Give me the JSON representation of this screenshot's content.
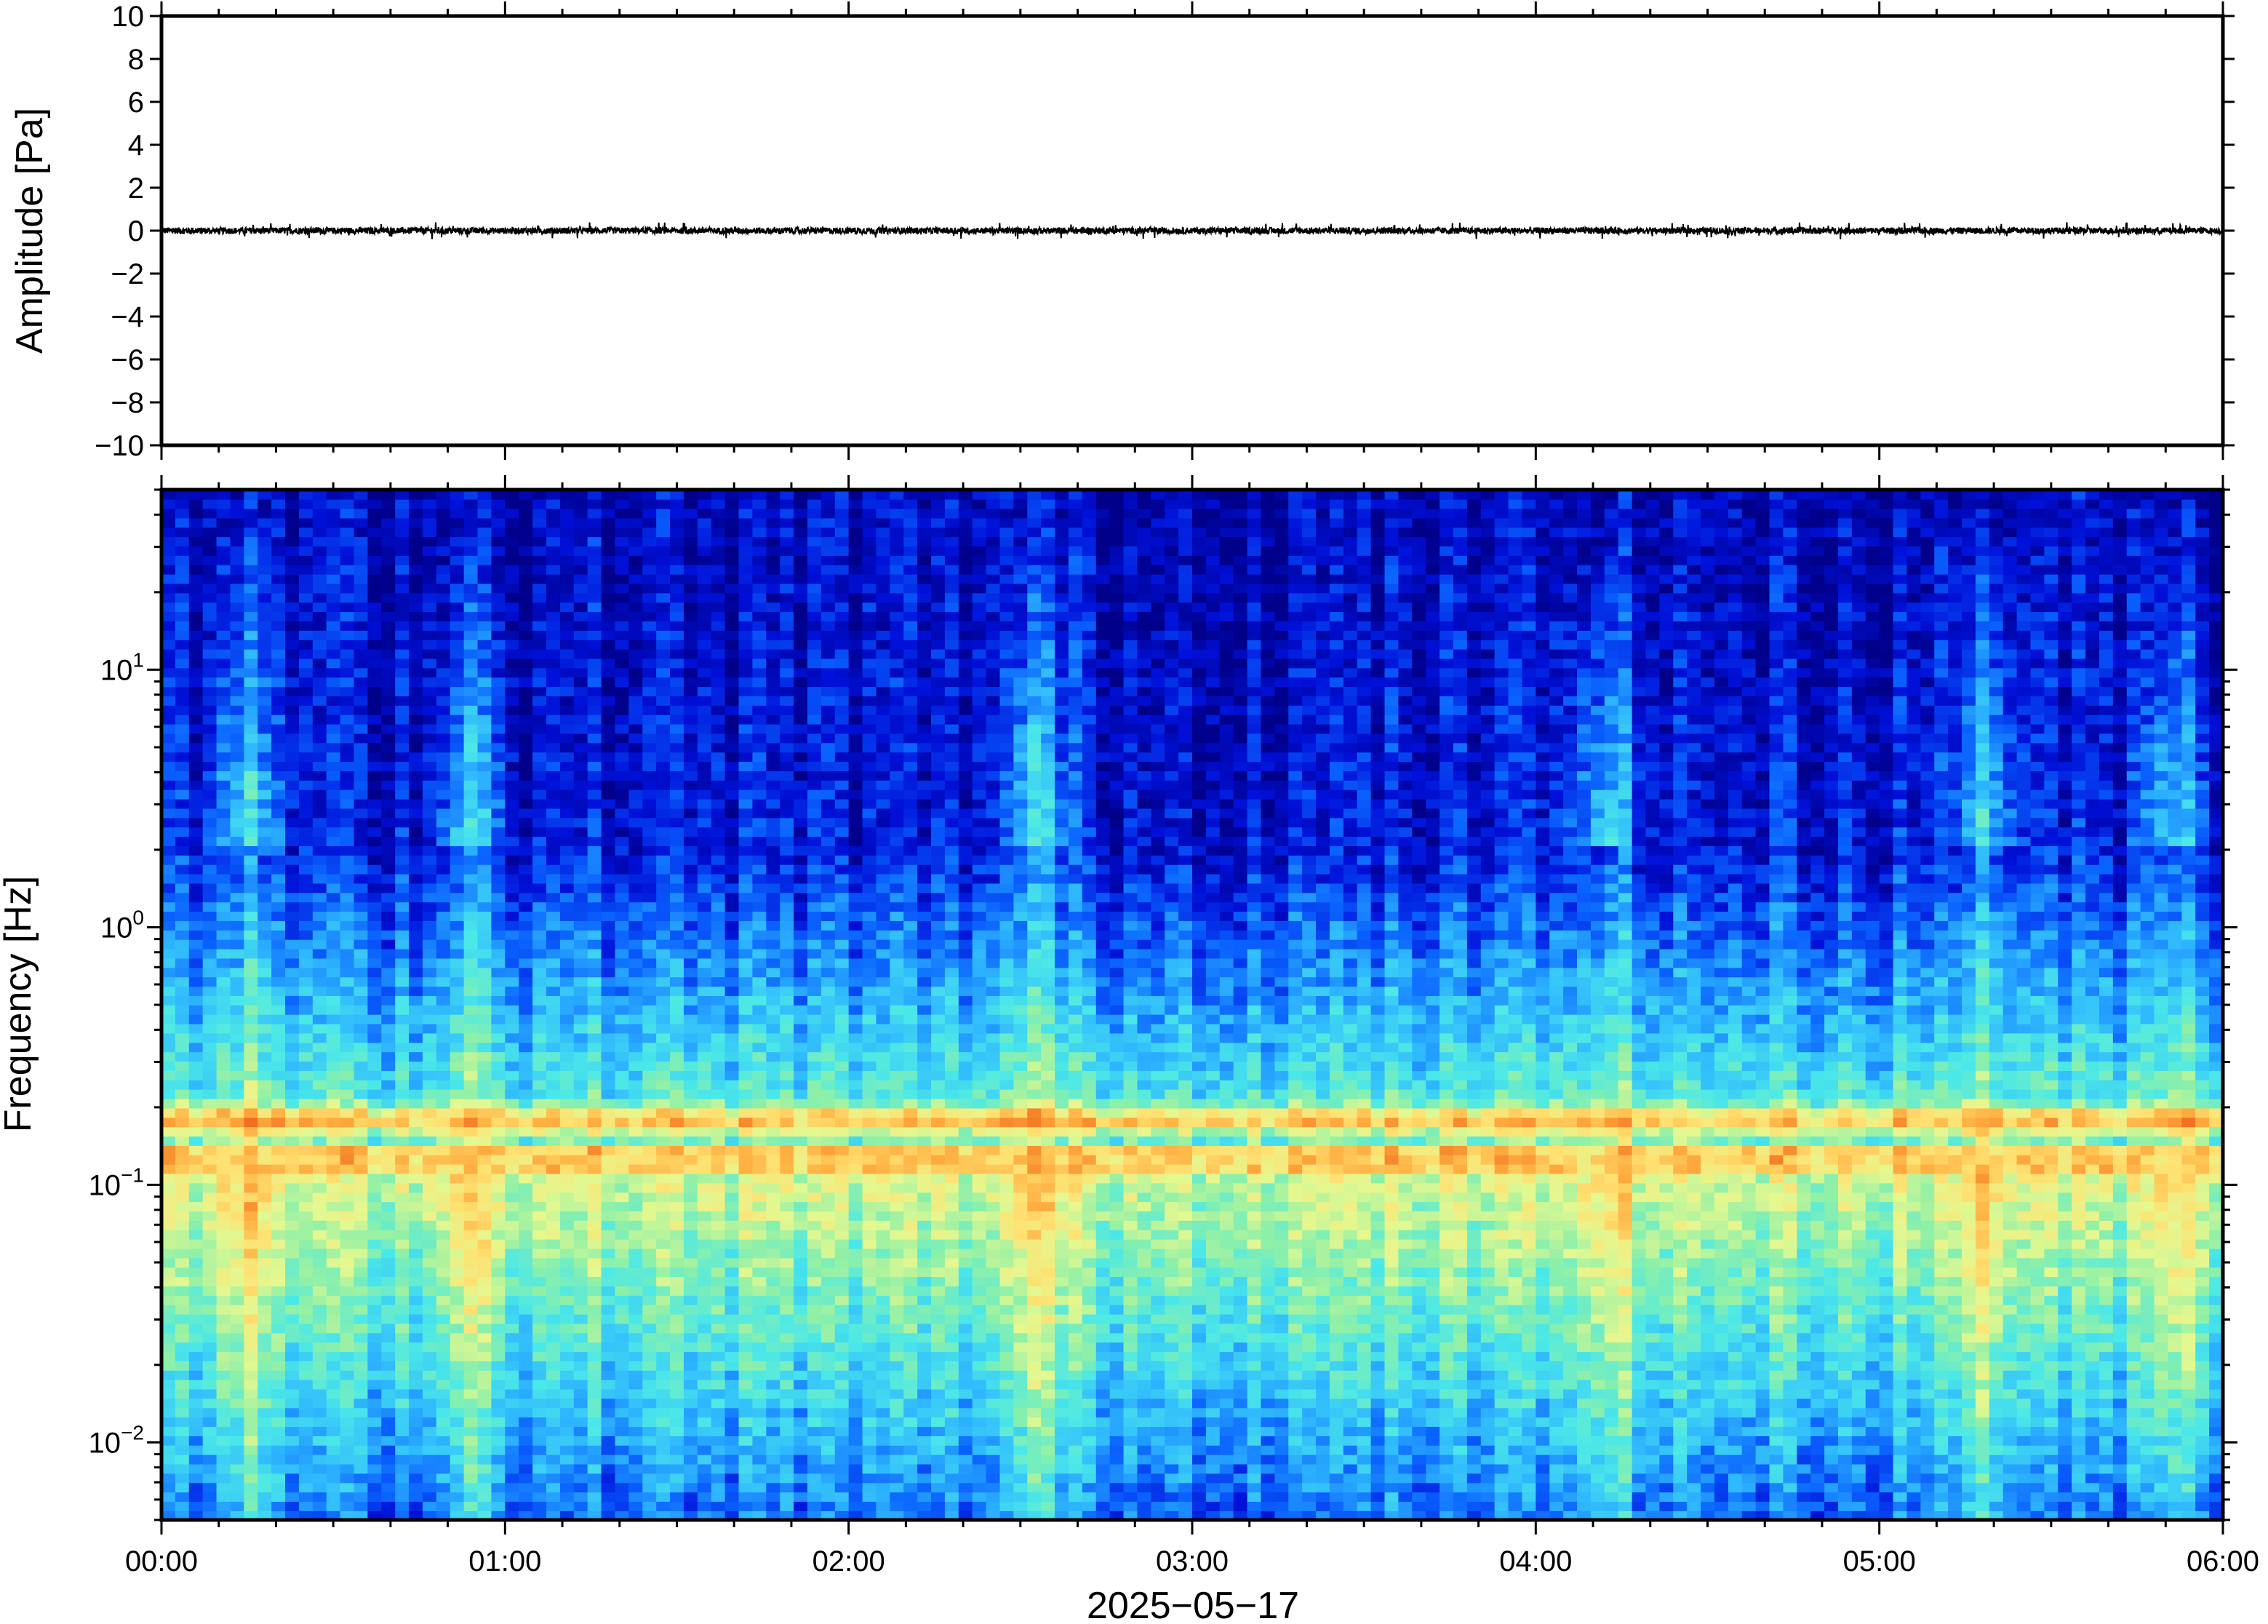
{
  "colors": {
    "trace": "#000000",
    "colormap": [
      "#00008a",
      "#0010d8",
      "#0a62ff",
      "#2fb8ff",
      "#4be8e8",
      "#8ef0a8",
      "#e4f890",
      "#ffe070",
      "#ffae40",
      "#f07020"
    ]
  },
  "chart_data": [
    {
      "type": "line",
      "panel": "amplitude",
      "ylabel": "Amplitude [Pa]",
      "ylim": [
        -10,
        10
      ],
      "yticks": [
        10,
        8,
        6,
        4,
        2,
        0,
        -2,
        -4,
        -6,
        -8,
        -10
      ],
      "ytick_labels": [
        "10",
        "8",
        "6",
        "4",
        "2",
        "0",
        "−2",
        "−4",
        "−6",
        "−8",
        "−10"
      ],
      "xlim_hours": [
        0,
        6
      ],
      "trace": {
        "baseline": 0,
        "peak_to_peak_approx": 0.5
      }
    },
    {
      "type": "heatmap",
      "panel": "spectrogram",
      "ylabel": "Frequency [Hz]",
      "yscale": "log",
      "ylim": [
        0.005,
        50
      ],
      "yticks": [
        10,
        1,
        0.1,
        0.01
      ],
      "ytick_labels": [
        {
          "base": "10",
          "exp": "1"
        },
        {
          "base": "10",
          "exp": "0"
        },
        {
          "base": "10",
          "exp": "−1"
        },
        {
          "base": "10",
          "exp": "−2"
        }
      ],
      "xlim_hours": [
        0,
        6
      ],
      "xticks": [
        "00:00",
        "01:00",
        "02:00",
        "03:00",
        "04:00",
        "05:00",
        "06:00"
      ],
      "xlabel": "2025−05−17",
      "features": {
        "microseism_peak_hz": 0.18,
        "high_energy_bursts_hours": [
          0.25,
          0.9,
          2.55,
          4.2,
          5.3,
          5.85
        ]
      }
    }
  ]
}
